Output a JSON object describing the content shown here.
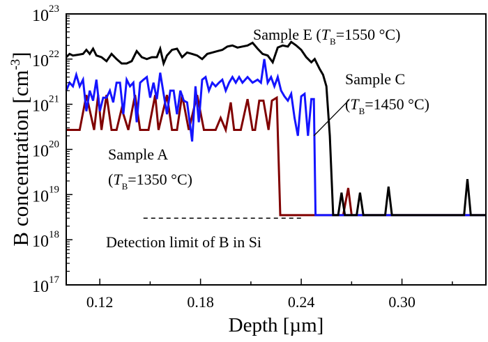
{
  "chart_data": {
    "type": "line",
    "xlabel": "Depth [µm]",
    "ylabel_main": "B concentration [cm",
    "ylabel_sup": "-3",
    "ylabel_close": "]",
    "xlim": [
      0.1,
      0.35
    ],
    "ylim": [
      1e+17,
      1e+23
    ],
    "yscale": "log",
    "grid": false,
    "x_ticks": [
      0.12,
      0.18,
      0.24,
      0.3
    ],
    "x_tick_labels": [
      "0.12",
      "0.18",
      "0.24",
      "0.30"
    ],
    "x_minor_ticks": [
      0.15,
      0.21,
      0.27,
      0.33
    ],
    "y_ticks": [
      17,
      18,
      19,
      20,
      21,
      22,
      23
    ],
    "y_tick_base": "10",
    "series": [
      {
        "name": "Sample E",
        "color": "#000000",
        "points": [
          [
            0.1,
            1.1e+22
          ],
          [
            0.102,
            1.3e+22
          ],
          [
            0.104,
            1.2e+22
          ],
          [
            0.107,
            1.25e+22
          ],
          [
            0.11,
            1.3e+22
          ],
          [
            0.112,
            1.6e+22
          ],
          [
            0.114,
            1.3e+22
          ],
          [
            0.116,
            1.7e+22
          ],
          [
            0.118,
            1.2e+22
          ],
          [
            0.121,
            1.1e+22
          ],
          [
            0.124,
            9e+21
          ],
          [
            0.127,
            1.3e+22
          ],
          [
            0.13,
            1e+22
          ],
          [
            0.133,
            8e+21
          ],
          [
            0.136,
            8e+21
          ],
          [
            0.139,
            9e+21
          ],
          [
            0.142,
            1.5e+22
          ],
          [
            0.145,
            1.1e+22
          ],
          [
            0.148,
            1e+22
          ],
          [
            0.151,
            1.1e+22
          ],
          [
            0.154,
            1.1e+22
          ],
          [
            0.156,
            1.7e+22
          ],
          [
            0.158,
            8e+21
          ],
          [
            0.16,
            1.2e+22
          ],
          [
            0.163,
            1.6e+22
          ],
          [
            0.166,
            1.7e+22
          ],
          [
            0.169,
            1.1e+22
          ],
          [
            0.172,
            1.4e+22
          ],
          [
            0.175,
            1.3e+22
          ],
          [
            0.178,
            1.2e+22
          ],
          [
            0.181,
            1e+22
          ],
          [
            0.184,
            1.3e+22
          ],
          [
            0.187,
            1.4e+22
          ],
          [
            0.19,
            1.5e+22
          ],
          [
            0.193,
            1.6e+22
          ],
          [
            0.196,
            1.9e+22
          ],
          [
            0.199,
            2e+22
          ],
          [
            0.202,
            1.8e+22
          ],
          [
            0.205,
            1.9e+22
          ],
          [
            0.208,
            2e+22
          ],
          [
            0.211,
            2.3e+22
          ],
          [
            0.214,
            1.7e+22
          ],
          [
            0.217,
            1.3e+22
          ],
          [
            0.22,
            1.2e+22
          ],
          [
            0.223,
            8.5e+21
          ],
          [
            0.226,
            1.8e+22
          ],
          [
            0.229,
            2e+22
          ],
          [
            0.232,
            1.9e+22
          ],
          [
            0.234,
            2.4e+22
          ],
          [
            0.237,
            2e+22
          ],
          [
            0.24,
            1.6e+22
          ],
          [
            0.243,
            1.1e+22
          ],
          [
            0.246,
            8.5e+21
          ],
          [
            0.248,
            1e+22
          ],
          [
            0.251,
            6e+21
          ],
          [
            0.253,
            4.5e+21
          ],
          [
            0.255,
            2.5e+21
          ],
          [
            0.257,
            2e+20
          ],
          [
            0.259,
            3.5e+18
          ],
          [
            0.262,
            3.5e+18
          ],
          [
            0.264,
            1.1e+19
          ],
          [
            0.266,
            3.5e+18
          ],
          [
            0.273,
            3.5e+18
          ],
          [
            0.275,
            1.1e+19
          ],
          [
            0.277,
            3.5e+18
          ],
          [
            0.29,
            3.5e+18
          ],
          [
            0.292,
            1.5e+19
          ],
          [
            0.294,
            3.5e+18
          ],
          [
            0.337,
            3.5e+18
          ],
          [
            0.339,
            2.2e+19
          ],
          [
            0.341,
            3.5e+18
          ],
          [
            0.35,
            3.5e+18
          ]
        ]
      },
      {
        "name": "Sample C",
        "color": "#1414ff",
        "points": [
          [
            0.1,
            2e+21
          ],
          [
            0.102,
            3e+21
          ],
          [
            0.104,
            2.5e+21
          ],
          [
            0.106,
            4.5e+21
          ],
          [
            0.108,
            2.5e+21
          ],
          [
            0.11,
            3.5e+21
          ],
          [
            0.112,
            7e+20
          ],
          [
            0.114,
            2e+21
          ],
          [
            0.116,
            1.2e+21
          ],
          [
            0.118,
            3.5e+21
          ],
          [
            0.12,
            7e+20
          ],
          [
            0.122,
            1.4e+21
          ],
          [
            0.124,
            1.4e+21
          ],
          [
            0.126,
            2e+21
          ],
          [
            0.128,
            1.1e+21
          ],
          [
            0.13,
            3e+21
          ],
          [
            0.132,
            3e+21
          ],
          [
            0.134,
            6e+20
          ],
          [
            0.136,
            3.5e+21
          ],
          [
            0.138,
            2.5e+21
          ],
          [
            0.14,
            3e+21
          ],
          [
            0.142,
            4e+20
          ],
          [
            0.144,
            3e+21
          ],
          [
            0.146,
            3.5e+21
          ],
          [
            0.148,
            4e+21
          ],
          [
            0.15,
            1.4e+21
          ],
          [
            0.152,
            3e+21
          ],
          [
            0.154,
            1.3e+21
          ],
          [
            0.156,
            5e+21
          ],
          [
            0.158,
            1.7e+21
          ],
          [
            0.16,
            6e+20
          ],
          [
            0.162,
            2e+21
          ],
          [
            0.164,
            2e+21
          ],
          [
            0.166,
            6e+20
          ],
          [
            0.168,
            2e+21
          ],
          [
            0.17,
            1.2e+21
          ],
          [
            0.172,
            1.1e+21
          ],
          [
            0.174,
            3e+20
          ],
          [
            0.175,
            1.5e+20
          ],
          [
            0.177,
            2.5e+21
          ],
          [
            0.179,
            4e+20
          ],
          [
            0.181,
            3.5e+21
          ],
          [
            0.183,
            4e+21
          ],
          [
            0.185,
            2e+21
          ],
          [
            0.187,
            3e+21
          ],
          [
            0.189,
            2.5e+21
          ],
          [
            0.191,
            3e+21
          ],
          [
            0.193,
            3.5e+21
          ],
          [
            0.195,
            2e+21
          ],
          [
            0.197,
            3e+21
          ],
          [
            0.199,
            4e+21
          ],
          [
            0.201,
            3e+21
          ],
          [
            0.203,
            4e+21
          ],
          [
            0.205,
            3e+21
          ],
          [
            0.208,
            4e+21
          ],
          [
            0.211,
            3e+21
          ],
          [
            0.214,
            3.5e+21
          ],
          [
            0.216,
            3e+21
          ],
          [
            0.218,
            1e+22
          ],
          [
            0.22,
            3e+21
          ],
          [
            0.222,
            4e+21
          ],
          [
            0.224,
            2.5e+21
          ],
          [
            0.226,
            4e+21
          ],
          [
            0.228,
            2e+21
          ],
          [
            0.23,
            1.5e+21
          ],
          [
            0.232,
            1.2e+21
          ],
          [
            0.234,
            1.7e+21
          ],
          [
            0.236,
            5e+20
          ],
          [
            0.238,
            2e+20
          ],
          [
            0.24,
            1.5e+21
          ],
          [
            0.242,
            1.7e+21
          ],
          [
            0.244,
            2e+20
          ],
          [
            0.246,
            1.3e+21
          ],
          [
            0.2475,
            1.3e+21
          ],
          [
            0.2485,
            3.5e+18
          ],
          [
            0.35,
            3.5e+18
          ]
        ]
      },
      {
        "name": "Sample A",
        "color": "#800000",
        "points": [
          [
            0.1,
            2.7e+20
          ],
          [
            0.108,
            2.7e+20
          ],
          [
            0.112,
            1.6e+21
          ],
          [
            0.1166,
            2.7e+20
          ],
          [
            0.119,
            1.6e+21
          ],
          [
            0.121,
            2.7e+20
          ],
          [
            0.124,
            1.6e+21
          ],
          [
            0.127,
            2.7e+20
          ],
          [
            0.13,
            2.7e+20
          ],
          [
            0.133,
            8e+20
          ],
          [
            0.137,
            2.7e+20
          ],
          [
            0.141,
            1.6e+21
          ],
          [
            0.144,
            2.7e+20
          ],
          [
            0.149,
            2.7e+20
          ],
          [
            0.153,
            1.6e+21
          ],
          [
            0.155,
            2.7e+20
          ],
          [
            0.16,
            1.6e+21
          ],
          [
            0.163,
            2.7e+20
          ],
          [
            0.166,
            2.7e+20
          ],
          [
            0.169,
            1.6e+21
          ],
          [
            0.173,
            2.7e+20
          ],
          [
            0.178,
            1.6e+21
          ],
          [
            0.182,
            2.7e+20
          ],
          [
            0.189,
            2.7e+20
          ],
          [
            0.192,
            5e+20
          ],
          [
            0.195,
            2.7e+20
          ],
          [
            0.198,
            1.1e+21
          ],
          [
            0.2,
            2.7e+20
          ],
          [
            0.204,
            2.7e+20
          ],
          [
            0.208,
            1.3e+21
          ],
          [
            0.211,
            2.7e+20
          ],
          [
            0.2125,
            2.7e+20
          ],
          [
            0.215,
            1.2e+21
          ],
          [
            0.2175,
            1.2e+21
          ],
          [
            0.2205,
            2.7e+20
          ],
          [
            0.2225,
            1.2e+21
          ],
          [
            0.2254,
            1.4e+21
          ],
          [
            0.2275,
            3.5e+18
          ],
          [
            0.265,
            3.5e+18
          ],
          [
            0.268,
            1.4e+19
          ],
          [
            0.27,
            3.5e+18
          ],
          [
            0.35,
            3.5e+18
          ]
        ]
      }
    ],
    "detection_limit": {
      "y": 3e+18,
      "x_range": [
        0.146,
        0.24
      ],
      "label": "Detection limit of B in Si"
    },
    "annotations": {
      "E": {
        "prefix": "Sample E (",
        "T": "T",
        "sub": "B",
        "suffix": "=1550 °C)"
      },
      "C": {
        "line1": "Sample C",
        "prefix": "(",
        "T": "T",
        "sub": "B",
        "suffix": "=1450 °C)"
      },
      "A": {
        "line1": "Sample A",
        "prefix": "(",
        "T": "T",
        "sub": "B",
        "suffix": "=1350 °C)"
      }
    },
    "pointer_line": {
      "from": [
        0.2686,
        1.26e+21
      ],
      "to": [
        0.2475,
        2e+20
      ]
    }
  }
}
